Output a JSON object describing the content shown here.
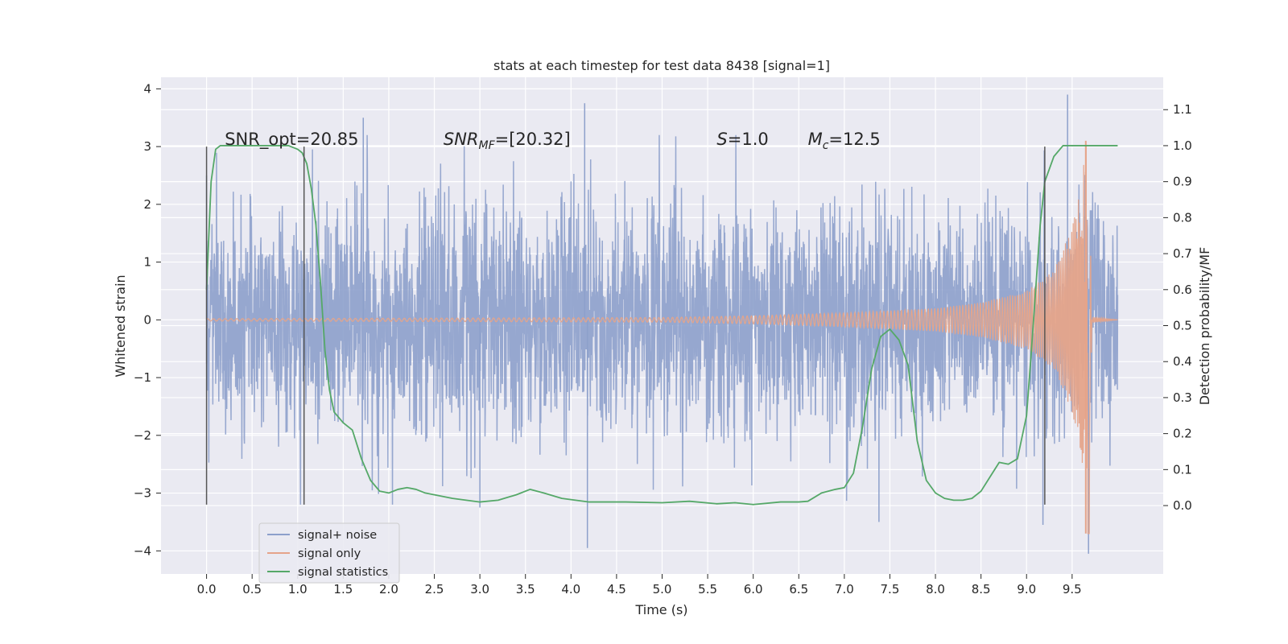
{
  "chart_data": {
    "type": "line",
    "title": "stats at each timestep for test data 8438 [signal=1]",
    "xlabel": "Time (s)",
    "ylabel": "Whitened strain",
    "y2label": "Detection probability/MF",
    "xlim": [
      -0.5,
      10.5
    ],
    "ylim": [
      -4.4,
      4.2
    ],
    "y2lim": [
      -0.19,
      1.19
    ],
    "xticks": [
      0.0,
      0.5,
      1.0,
      1.5,
      2.0,
      2.5,
      3.0,
      3.5,
      4.0,
      4.5,
      5.0,
      5.5,
      6.0,
      6.5,
      7.0,
      7.5,
      8.0,
      8.5,
      9.0,
      9.5
    ],
    "xtick_labels": [
      "0.0",
      "0.5",
      "1.0",
      "1.5",
      "2.0",
      "2.5",
      "3.0",
      "3.5",
      "4.0",
      "4.5",
      "5.0",
      "5.5",
      "6.0",
      "6.5",
      "7.0",
      "7.5",
      "8.0",
      "8.5",
      "9.0",
      "9.5"
    ],
    "yticks": [
      4,
      3,
      2,
      1,
      0,
      -1,
      -2,
      -3,
      -4
    ],
    "ytick_labels": [
      "4",
      "3",
      "2",
      "1",
      "0",
      "−1",
      "−2",
      "−3",
      "−4"
    ],
    "y2ticks": [
      1.1,
      1.0,
      0.9,
      0.8,
      0.7,
      0.6,
      0.5,
      0.4,
      0.3,
      0.2,
      0.1,
      0.0
    ],
    "y2tick_labels": [
      "1.1",
      "1.0",
      "0.9",
      "0.8",
      "0.7",
      "0.6",
      "0.5",
      "0.4",
      "0.3",
      "0.2",
      "0.1",
      "0.0"
    ],
    "grid": true,
    "legend_position": "lower-left",
    "annotations": [
      {
        "text": "SNR_opt=20.85",
        "x": 0.2,
        "y": 3.0,
        "math": false
      },
      {
        "text": "SNR",
        "sub": "MF",
        "suffix": "=[20.32]",
        "x": 2.6,
        "y": 3.0,
        "math": true
      },
      {
        "text": "S",
        "sub": "",
        "suffix": "=1.0",
        "x": 5.6,
        "y": 3.0,
        "math": true
      },
      {
        "text": "M",
        "sub": "c",
        "suffix": "=12.5",
        "x": 6.6,
        "y": 3.0,
        "math": true
      }
    ],
    "vlines": [
      {
        "x": 0.0,
        "ymin": -3.2,
        "ymax": 3.0
      },
      {
        "x": 1.07,
        "ymin": -3.2,
        "ymax": 3.0
      },
      {
        "x": 9.2,
        "ymin": -3.2,
        "ymax": 3.0
      }
    ],
    "series": [
      {
        "name": "signal+ noise",
        "color": "#8da0cb",
        "kind": "noise",
        "x_range": [
          0.0,
          10.0
        ],
        "sigma": 1.0,
        "extremes": [
          {
            "x": 0.0,
            "y": 2.5
          },
          {
            "x": 1.72,
            "y": 3.5
          },
          {
            "x": 4.15,
            "y": 3.75
          },
          {
            "x": 9.45,
            "y": 3.9
          },
          {
            "x": 4.18,
            "y": -3.95
          },
          {
            "x": 9.68,
            "y": -4.05
          },
          {
            "x": 7.38,
            "y": -3.5
          },
          {
            "x": 3.0,
            "y": -3.25
          },
          {
            "x": 9.18,
            "y": -3.55
          }
        ]
      },
      {
        "name": "signal only",
        "color": "#e5a48a",
        "kind": "chirp",
        "x_range": [
          0.0,
          10.0
        ],
        "merger_time": 9.67,
        "envelope": [
          {
            "x": 0.0,
            "y": 0.02
          },
          {
            "x": 5.0,
            "y": 0.04
          },
          {
            "x": 6.0,
            "y": 0.07
          },
          {
            "x": 7.0,
            "y": 0.12
          },
          {
            "x": 8.0,
            "y": 0.2
          },
          {
            "x": 8.5,
            "y": 0.3
          },
          {
            "x": 9.0,
            "y": 0.5
          },
          {
            "x": 9.3,
            "y": 0.85
          },
          {
            "x": 9.5,
            "y": 1.6
          },
          {
            "x": 9.6,
            "y": 2.3
          },
          {
            "x": 9.65,
            "y": 3.1
          },
          {
            "x": 9.67,
            "y": -3.7
          },
          {
            "x": 9.72,
            "y": 0.05
          },
          {
            "x": 10.0,
            "y": 0.0
          }
        ]
      },
      {
        "name": "signal statistics",
        "color": "#55a868",
        "kind": "line",
        "axis": "right",
        "x": [
          0.0,
          0.05,
          0.1,
          0.15,
          0.2,
          0.3,
          0.5,
          0.8,
          0.9,
          1.0,
          1.05,
          1.1,
          1.15,
          1.2,
          1.25,
          1.3,
          1.35,
          1.4,
          1.5,
          1.6,
          1.7,
          1.8,
          1.9,
          2.0,
          2.1,
          2.2,
          2.3,
          2.4,
          2.5,
          2.7,
          3.0,
          3.2,
          3.4,
          3.55,
          3.7,
          3.9,
          4.2,
          4.6,
          5.0,
          5.3,
          5.6,
          5.8,
          6.0,
          6.3,
          6.5,
          6.6,
          6.75,
          6.9,
          7.0,
          7.1,
          7.2,
          7.3,
          7.4,
          7.5,
          7.6,
          7.7,
          7.8,
          7.9,
          8.0,
          8.1,
          8.2,
          8.3,
          8.4,
          8.5,
          8.6,
          8.7,
          8.8,
          8.9,
          9.0,
          9.05,
          9.1,
          9.15,
          9.2,
          9.3,
          9.4,
          9.5,
          9.7,
          9.9,
          10.0
        ],
        "y": [
          0.6,
          0.9,
          0.99,
          1.0,
          1.0,
          1.0,
          1.0,
          1.0,
          1.0,
          0.99,
          0.98,
          0.95,
          0.88,
          0.78,
          0.62,
          0.43,
          0.32,
          0.26,
          0.23,
          0.21,
          0.13,
          0.07,
          0.04,
          0.035,
          0.045,
          0.05,
          0.045,
          0.035,
          0.03,
          0.02,
          0.01,
          0.015,
          0.03,
          0.045,
          0.035,
          0.02,
          0.01,
          0.01,
          0.008,
          0.012,
          0.005,
          0.008,
          0.003,
          0.01,
          0.01,
          0.012,
          0.035,
          0.045,
          0.05,
          0.09,
          0.22,
          0.38,
          0.47,
          0.49,
          0.46,
          0.39,
          0.18,
          0.07,
          0.035,
          0.02,
          0.015,
          0.015,
          0.02,
          0.04,
          0.08,
          0.12,
          0.115,
          0.13,
          0.25,
          0.42,
          0.6,
          0.78,
          0.9,
          0.97,
          1.0,
          1.0,
          1.0,
          1.0,
          1.0
        ]
      }
    ]
  }
}
